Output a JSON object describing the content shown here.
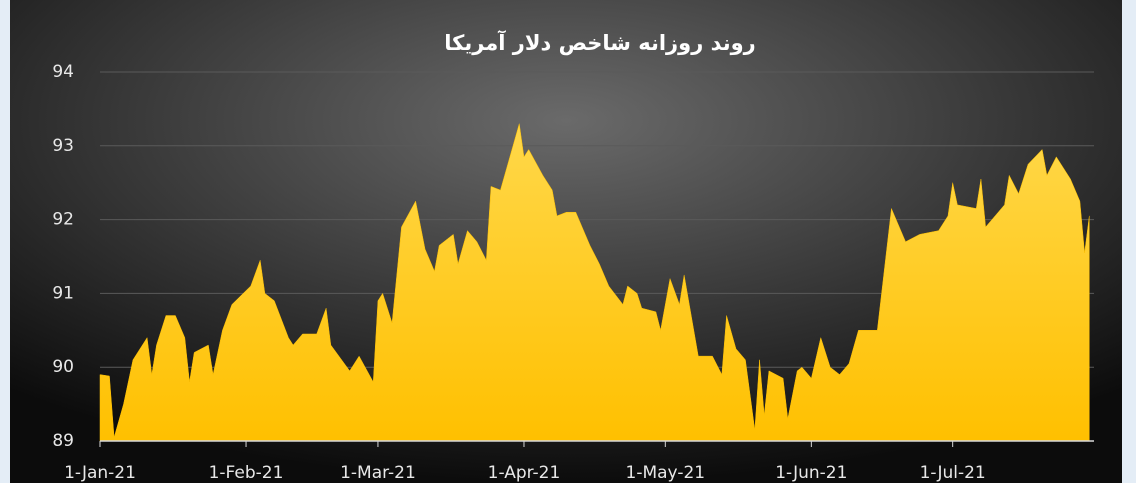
{
  "chart_data": {
    "type": "area",
    "title": "روند روزانه شاخص دلار آمریکا",
    "x": [
      "2021-01-01",
      "2021-01-03",
      "2021-01-04",
      "2021-01-06",
      "2021-01-08",
      "2021-01-11",
      "2021-01-12",
      "2021-01-13",
      "2021-01-15",
      "2021-01-17",
      "2021-01-19",
      "2021-01-20",
      "2021-01-21",
      "2021-01-24",
      "2021-01-25",
      "2021-01-27",
      "2021-01-29",
      "2021-02-02",
      "2021-02-04",
      "2021-02-05",
      "2021-02-07",
      "2021-02-10",
      "2021-02-11",
      "2021-02-13",
      "2021-02-16",
      "2021-02-18",
      "2021-02-19",
      "2021-02-23",
      "2021-02-25",
      "2021-02-28",
      "2021-03-01",
      "2021-03-02",
      "2021-03-04",
      "2021-03-06",
      "2021-03-09",
      "2021-03-11",
      "2021-03-13",
      "2021-03-14",
      "2021-03-17",
      "2021-03-18",
      "2021-03-20",
      "2021-03-22",
      "2021-03-24",
      "2021-03-25",
      "2021-03-27",
      "2021-03-29",
      "2021-03-31",
      "2021-04-01",
      "2021-04-02",
      "2021-04-05",
      "2021-04-07",
      "2021-04-08",
      "2021-04-10",
      "2021-04-12",
      "2021-04-15",
      "2021-04-17",
      "2021-04-19",
      "2021-04-22",
      "2021-04-23",
      "2021-04-25",
      "2021-04-26",
      "2021-04-29",
      "2021-04-30",
      "2021-05-02",
      "2021-05-04",
      "2021-05-05",
      "2021-05-08",
      "2021-05-11",
      "2021-05-13",
      "2021-05-14",
      "2021-05-16",
      "2021-05-18",
      "2021-05-20",
      "2021-05-21",
      "2021-05-22",
      "2021-05-23",
      "2021-05-26",
      "2021-05-27",
      "2021-05-29",
      "2021-05-30",
      "2021-06-01",
      "2021-06-03",
      "2021-06-05",
      "2021-06-07",
      "2021-06-09",
      "2021-06-11",
      "2021-06-15",
      "2021-06-18",
      "2021-06-21",
      "2021-06-24",
      "2021-06-28",
      "2021-06-30",
      "2021-07-01",
      "2021-07-02",
      "2021-07-06",
      "2021-07-07",
      "2021-07-08",
      "2021-07-12",
      "2021-07-13",
      "2021-07-15",
      "2021-07-17",
      "2021-07-20",
      "2021-07-21",
      "2021-07-23",
      "2021-07-26",
      "2021-07-28",
      "2021-07-29",
      "2021-07-30"
    ],
    "values": [
      89.9,
      89.88,
      89.05,
      89.5,
      90.1,
      90.4,
      89.9,
      90.3,
      90.7,
      90.7,
      90.4,
      89.8,
      90.2,
      90.3,
      89.9,
      90.5,
      90.85,
      91.1,
      91.45,
      91.0,
      90.9,
      90.4,
      90.3,
      90.45,
      90.45,
      90.8,
      90.3,
      89.95,
      90.15,
      89.8,
      90.9,
      91.0,
      90.6,
      91.9,
      92.25,
      91.6,
      91.3,
      91.65,
      91.8,
      91.4,
      91.85,
      91.7,
      91.45,
      92.45,
      92.4,
      92.85,
      93.3,
      92.85,
      92.95,
      92.6,
      92.4,
      92.05,
      92.1,
      92.1,
      91.65,
      91.4,
      91.1,
      90.85,
      91.1,
      91.0,
      90.8,
      90.75,
      90.5,
      91.2,
      90.85,
      91.25,
      90.15,
      90.15,
      89.9,
      90.7,
      90.25,
      90.1,
      89.15,
      90.1,
      89.35,
      89.95,
      89.85,
      89.3,
      89.95,
      90.0,
      89.85,
      90.4,
      90.0,
      89.9,
      90.05,
      90.5,
      90.5,
      92.15,
      91.7,
      91.8,
      91.85,
      92.05,
      92.5,
      92.2,
      92.15,
      92.55,
      91.9,
      92.2,
      92.6,
      92.35,
      92.75,
      92.95,
      92.6,
      92.85,
      92.55,
      92.25,
      91.55,
      92.05
    ],
    "color": "#ffc000",
    "xlim": [
      "2021-01-01",
      "2021-07-31"
    ],
    "xticks": [
      {
        "value": "2021-01-01",
        "label": "1-Jan-21"
      },
      {
        "value": "2021-02-01",
        "label": "1-Feb-21"
      },
      {
        "value": "2021-03-01",
        "label": "1-Mar-21"
      },
      {
        "value": "2021-04-01",
        "label": "1-Apr-21"
      },
      {
        "value": "2021-05-01",
        "label": "1-May-21"
      },
      {
        "value": "2021-06-01",
        "label": "1-Jun-21"
      },
      {
        "value": "2021-07-01",
        "label": "1-Jul-21"
      }
    ],
    "ylim": [
      89,
      94
    ],
    "yticks": [
      89,
      90,
      91,
      92,
      93,
      94
    ],
    "grid": true
  }
}
